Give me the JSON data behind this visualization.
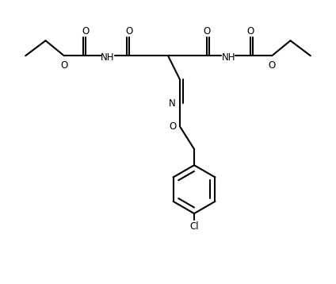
{
  "line_color": "#000000",
  "bg_color": "#ffffff",
  "line_width": 1.5,
  "font_size": 8.5,
  "figsize": [
    4.24,
    3.58
  ],
  "dpi": 100,
  "xlim": [
    0,
    10
  ],
  "ylim": [
    0,
    8.46
  ]
}
